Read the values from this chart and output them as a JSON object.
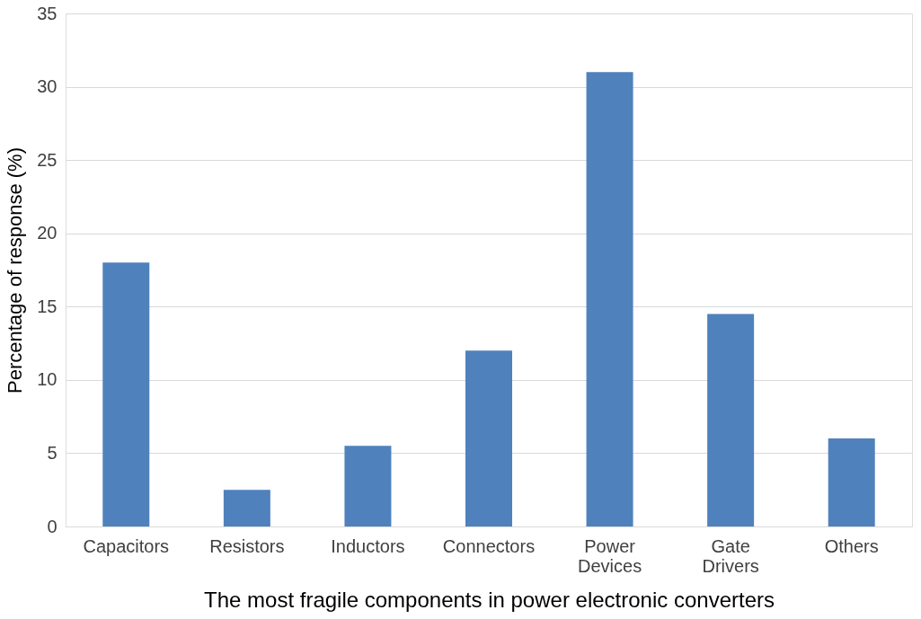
{
  "chart_data": {
    "type": "bar",
    "categories": [
      "Capacitors",
      "Resistors",
      "Inductors",
      "Connectors",
      "Power Devices",
      "Gate Drivers",
      "Others"
    ],
    "values": [
      18,
      2.5,
      5.5,
      12,
      31,
      14.5,
      6
    ],
    "color": "#4f81bd",
    "xlabel": "The most fragile components in power electronic converters",
    "ylabel": "Percentage of response (%)",
    "ylim": [
      0,
      35
    ],
    "yticks": [
      0,
      5,
      10,
      15,
      20,
      25,
      30,
      35
    ],
    "grid": "y"
  }
}
